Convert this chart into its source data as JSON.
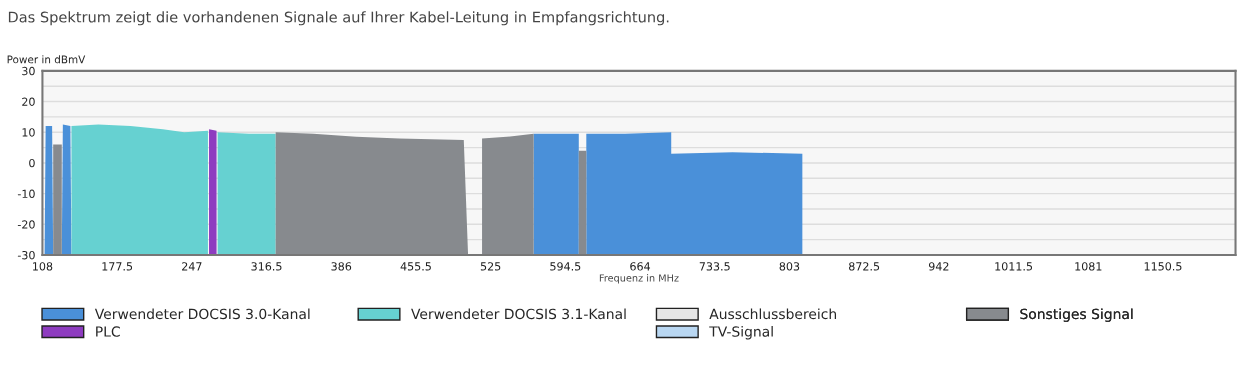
{
  "chart_data": {
    "type": "area",
    "title": "Das Spektrum zeigt die vorhandenen Signale auf Ihrer Kabel-Leitung in Empfangsrichtung.",
    "xlabel": "Frequenz in MHz",
    "ylabel": "Power in dBmV",
    "xlim": [
      108,
      1218
    ],
    "xticks": [
      108,
      177.5,
      247,
      316.5,
      386,
      455.5,
      525,
      594.5,
      664,
      733.5,
      803,
      872.5,
      942,
      1011.5,
      1081,
      1150.5
    ],
    "ylim": [
      -30,
      30
    ],
    "yticks": [
      -30,
      {
        "value": -25,
        "label": null
      },
      -20,
      {
        "value": -15,
        "label": null
      },
      -10,
      {
        "value": -5,
        "label": null
      },
      0,
      {
        "value": 5,
        "label": null
      },
      10,
      {
        "value": 15,
        "label": null
      },
      20,
      {
        "value": 25,
        "label": null
      },
      30
    ],
    "grid": "y",
    "legend": "bottom",
    "series": [
      {
        "name": "Verwendeter DOCSIS 3.0-Kanal",
        "color": "#4a90d9",
        "x": [
          110,
          111,
          117,
          118,
          126,
          127,
          134,
          135,
          565,
          565,
          607,
          607,
          614,
          614,
          650,
          693,
          693,
          750,
          815,
          815
        ],
        "values": [
          -30,
          12,
          12,
          -30,
          -30,
          12.5,
          12,
          -30,
          -30,
          9.5,
          9.5,
          -30,
          -30,
          9.5,
          9.5,
          10,
          3,
          3.5,
          3,
          -30
        ]
      },
      {
        "name": "PLC",
        "color": "#8e3cc0",
        "x": [
          263,
          263,
          270,
          270
        ],
        "values": [
          -30,
          11,
          10.5,
          -30
        ]
      },
      {
        "name": "Verwendeter DOCSIS 3.1-Kanal",
        "color": "#66d1d1",
        "x": [
          135,
          135,
          160,
          190,
          220,
          240,
          262,
          262,
          266.5,
          271,
          271,
          300,
          325,
          325
        ],
        "values": [
          -30,
          12,
          12.5,
          12,
          11,
          10,
          10.5,
          -30,
          null,
          -30,
          10,
          9.5,
          9.5,
          -30
        ]
      },
      {
        "name": "Ausschlussbereich",
        "color": "#e6e6e6"
      },
      {
        "name": "TV-Signal",
        "color": "#b9d7f2"
      },
      {
        "name": "Sonstiges Signal",
        "color": "#878a8e",
        "x": [
          118,
          118,
          126,
          126,
          325,
          325,
          360,
          400,
          440,
          500,
          504,
          517,
          517,
          540,
          565,
          565,
          607,
          607,
          614,
          614
        ],
        "values": [
          -30,
          6,
          6,
          -30,
          -30,
          10,
          9.5,
          8.5,
          8,
          7.5,
          -30,
          -30,
          8,
          8.5,
          9.5,
          -30,
          -30,
          4,
          4,
          -30
        ]
      }
    ]
  }
}
